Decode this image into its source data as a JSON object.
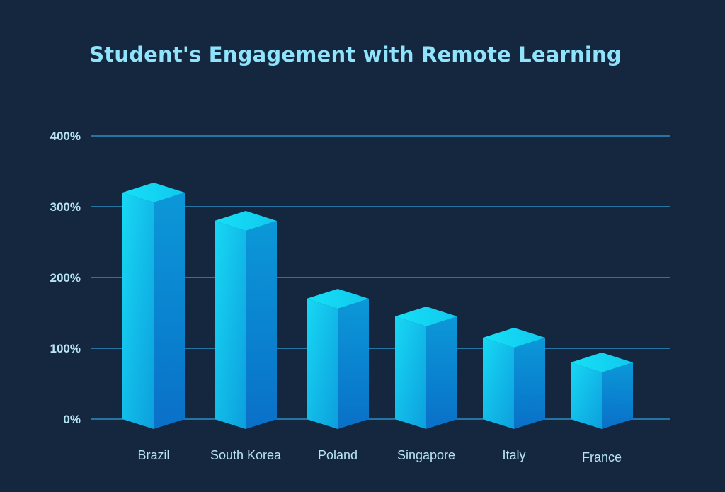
{
  "title": "Student's Engagement with Remote Learning",
  "colors": {
    "background": "#14273f",
    "title": "#8fe3fb",
    "gridline": "#2b8fc4",
    "tick_label": "#b8e4f5",
    "bar_top": "#19dcf5",
    "bar_left": "#14c3ec",
    "bar_right": "#0a8fd6"
  },
  "chart_data": {
    "type": "bar",
    "title": "Student's Engagement with Remote Learning",
    "xlabel": "",
    "ylabel": "",
    "categories": [
      "Brazil",
      "South Korea",
      "Poland",
      "Singapore",
      "Italy",
      "France"
    ],
    "values": [
      320,
      280,
      170,
      145,
      115,
      80
    ],
    "unit": "%",
    "ylim": [
      0,
      400
    ],
    "yticks": [
      0,
      100,
      200,
      300,
      400
    ],
    "ytick_labels": [
      "0%",
      "100%",
      "200%",
      "300%",
      "400%"
    ],
    "grid": true,
    "legend": null,
    "style": "3d-isometric-bars"
  }
}
